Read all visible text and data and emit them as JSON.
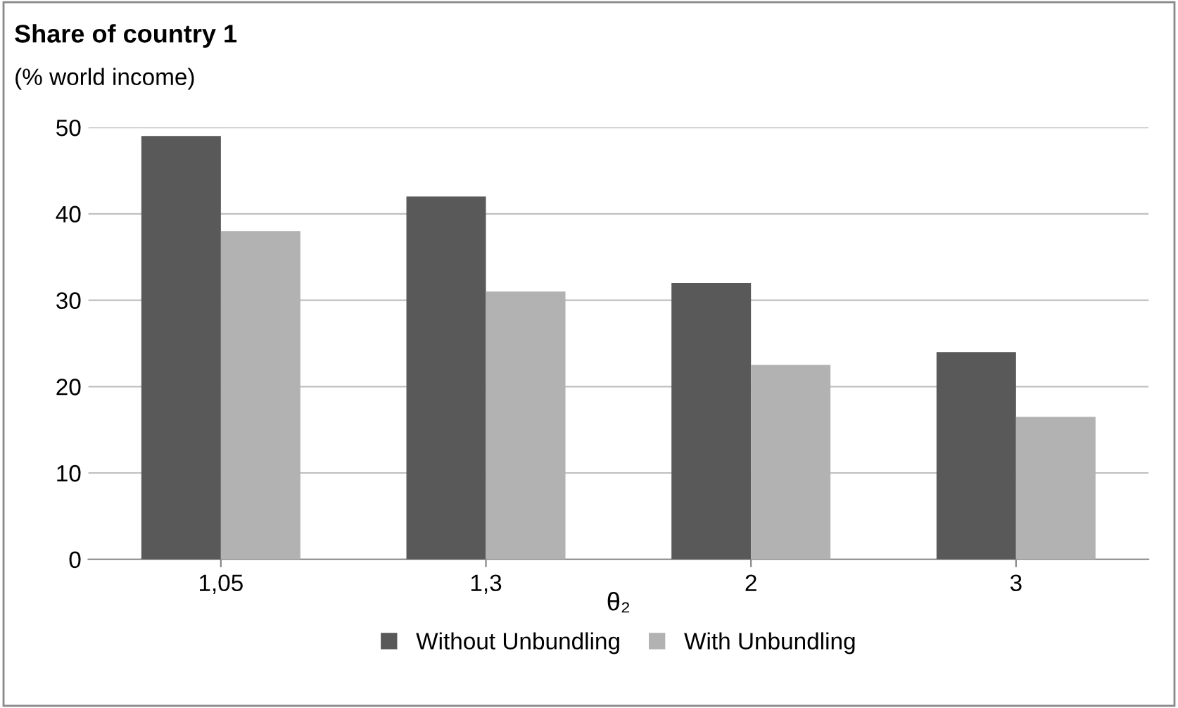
{
  "chart_data": {
    "type": "bar",
    "title": "Share of country 1",
    "subtitle": "(% world income)",
    "xlabel": "θ₂",
    "categories": [
      "1,05",
      "1,3",
      "2",
      "3"
    ],
    "series": [
      {
        "name": "Without Unbundling",
        "color": "#595959",
        "values": [
          49,
          42,
          32,
          24
        ]
      },
      {
        "name": "With Unbundling",
        "color": "#b2b2b2",
        "values": [
          38,
          31,
          22.5,
          16.5
        ]
      }
    ],
    "ylim": [
      0,
      50
    ],
    "yticks": [
      0,
      10,
      20,
      30,
      40,
      50
    ],
    "grid": "y",
    "legend": "bottom"
  }
}
